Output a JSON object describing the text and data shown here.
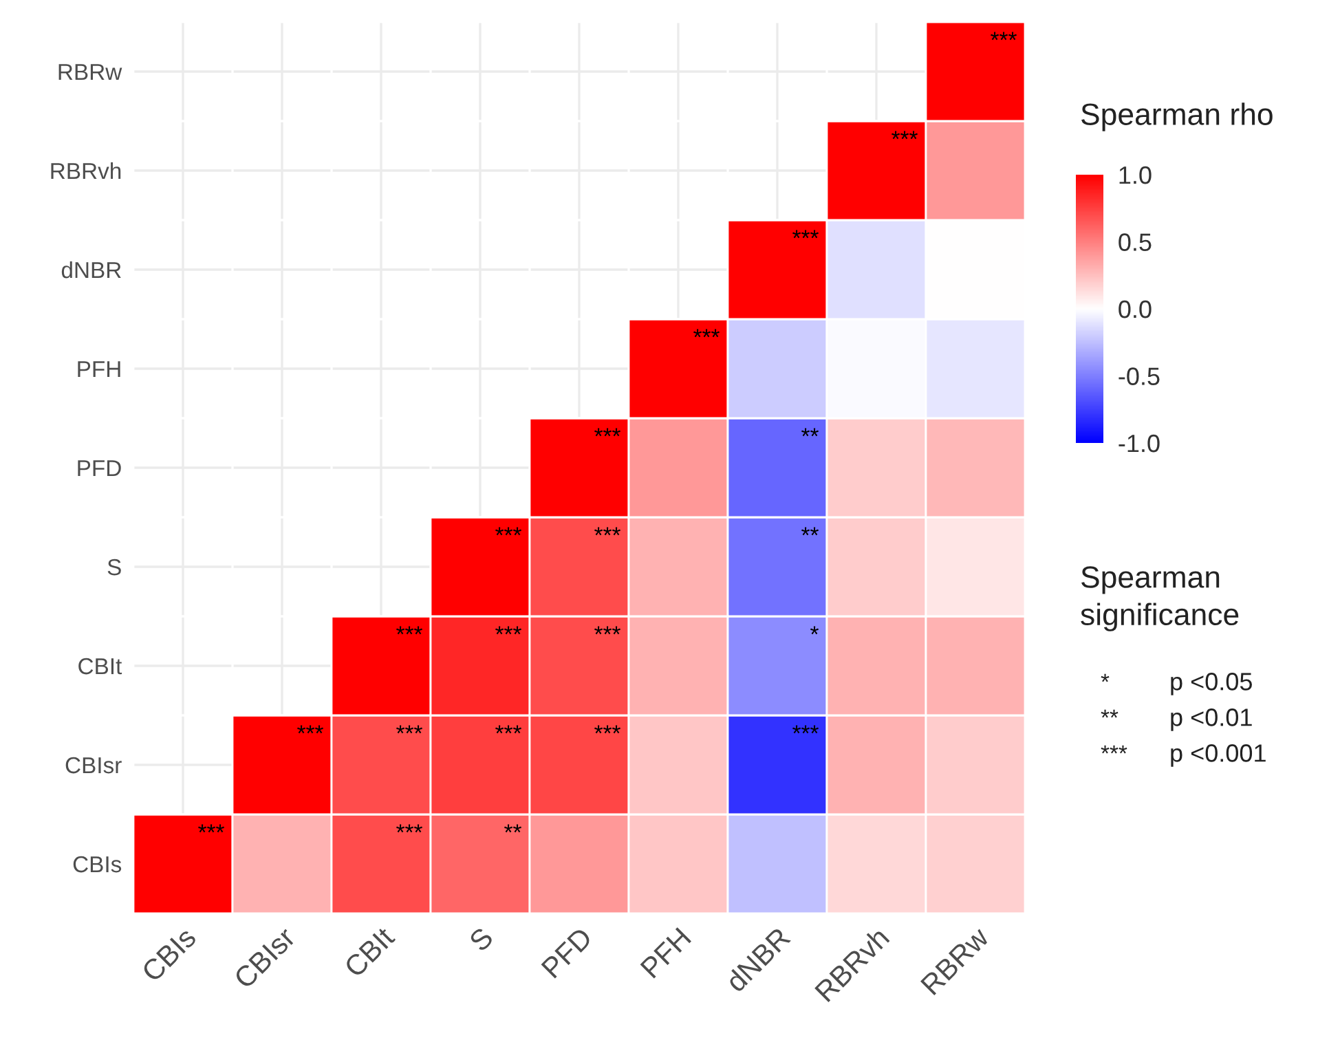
{
  "chart_data": {
    "type": "heatmap",
    "categories": [
      "CBIs",
      "CBIsr",
      "CBIt",
      "S",
      "PFD",
      "PFH",
      "dNBR",
      "RBRvh",
      "RBRw"
    ],
    "y_categories": [
      "RBRw",
      "RBRvh",
      "dNBR",
      "PFH",
      "PFD",
      "S",
      "CBIt",
      "CBIsr",
      "CBIs"
    ],
    "cells": [
      [
        null,
        null,
        null,
        null,
        null,
        null,
        null,
        null,
        1.0
      ],
      [
        null,
        null,
        null,
        null,
        null,
        null,
        null,
        1.0,
        0.4
      ],
      [
        null,
        null,
        null,
        null,
        null,
        null,
        1.0,
        -0.12,
        0.0
      ],
      [
        null,
        null,
        null,
        null,
        null,
        1.0,
        -0.2,
        -0.02,
        -0.1
      ],
      [
        null,
        null,
        null,
        null,
        1.0,
        0.4,
        -0.6,
        0.2,
        0.28
      ],
      [
        null,
        null,
        null,
        1.0,
        0.7,
        0.3,
        -0.55,
        0.2,
        0.1
      ],
      [
        null,
        null,
        1.0,
        0.85,
        0.7,
        0.3,
        -0.45,
        0.3,
        0.3
      ],
      [
        null,
        1.0,
        0.7,
        0.75,
        0.72,
        0.22,
        -0.8,
        0.3,
        0.2
      ],
      [
        1.0,
        0.3,
        0.7,
        0.6,
        0.4,
        0.22,
        -0.25,
        0.15,
        0.18
      ]
    ],
    "cell_labels": [
      [
        null,
        null,
        null,
        null,
        null,
        null,
        null,
        null,
        "***"
      ],
      [
        null,
        null,
        null,
        null,
        null,
        null,
        null,
        "***",
        null
      ],
      [
        null,
        null,
        null,
        null,
        null,
        null,
        "***",
        null,
        null
      ],
      [
        null,
        null,
        null,
        null,
        null,
        "***",
        null,
        null,
        null
      ],
      [
        null,
        null,
        null,
        null,
        "***",
        null,
        "**",
        null,
        null
      ],
      [
        null,
        null,
        null,
        "***",
        "***",
        null,
        "**",
        null,
        null
      ],
      [
        null,
        null,
        "***",
        "***",
        "***",
        null,
        "*",
        null,
        null
      ],
      [
        null,
        "***",
        "***",
        "***",
        "***",
        null,
        "***",
        null,
        null
      ],
      [
        "***",
        null,
        "***",
        "**",
        null,
        null,
        null,
        null,
        null
      ]
    ],
    "clabel": "Spearman rho",
    "clim": [
      -1.0,
      1.0
    ],
    "cticks": [
      {
        "value": 1.0,
        "label": "1.0"
      },
      {
        "value": 0.5,
        "label": "0.5"
      },
      {
        "value": 0.0,
        "label": "0.0"
      },
      {
        "value": -0.5,
        "label": "-0.5"
      },
      {
        "value": -1.0,
        "label": "-1.0"
      }
    ],
    "legend_title": "Spearman significance",
    "annotations": [
      "*",
      "p <0.05",
      "**",
      "p <0.01",
      "***",
      "p <0.001"
    ],
    "grid": true
  }
}
